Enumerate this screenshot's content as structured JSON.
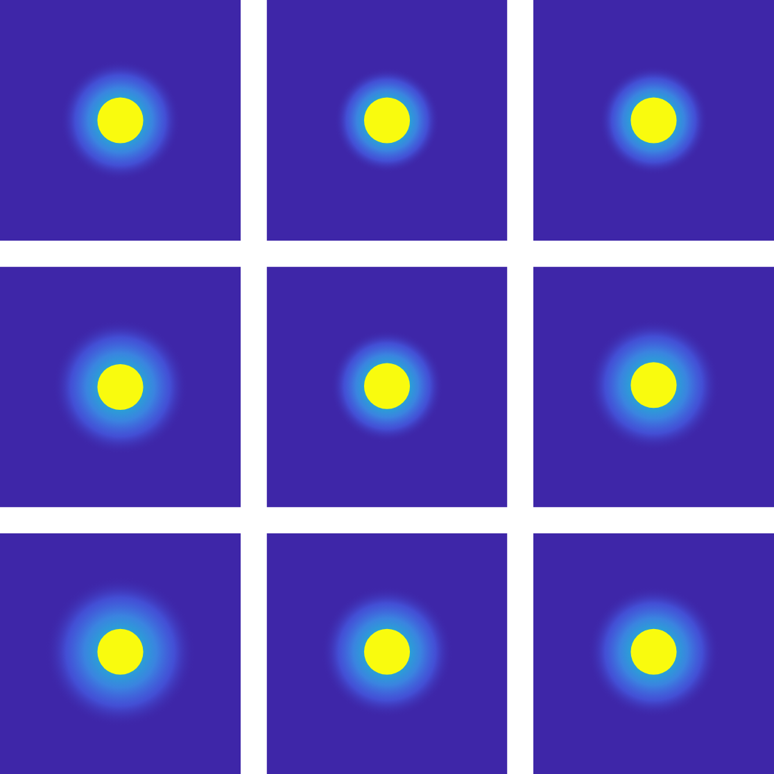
{
  "chart_data": [
    {
      "type": "heatmap",
      "xlim": [
        0,
        128
      ],
      "ylim": [
        0,
        128
      ],
      "tick_labels": false,
      "colors": [
        "#3e26a8",
        "#2a9fd6",
        "#f9fb0e"
      ],
      "disk": {
        "x": 64,
        "y": 64,
        "radius": 12.2
      },
      "halo_radius": 32
    },
    {
      "type": "heatmap",
      "xlim": [
        0,
        128
      ],
      "ylim": [
        0,
        128
      ],
      "tick_labels": false,
      "colors": [
        "#3e26a8",
        "#2a9fd6",
        "#f9fb0e"
      ],
      "disk": {
        "x": 64,
        "y": 64,
        "radius": 12.2
      },
      "halo_radius": 28
    },
    {
      "type": "heatmap",
      "xlim": [
        0,
        128
      ],
      "ylim": [
        0,
        128
      ],
      "tick_labels": false,
      "colors": [
        "#3e26a8",
        "#2a9fd6",
        "#f9fb0e"
      ],
      "disk": {
        "x": 64,
        "y": 64,
        "radius": 12.2
      },
      "halo_radius": 29
    },
    {
      "type": "heatmap",
      "xlim": [
        0,
        128
      ],
      "ylim": [
        0,
        128
      ],
      "tick_labels": false,
      "colors": [
        "#3e26a8",
        "#2a9fd6",
        "#f9fb0e"
      ],
      "disk": {
        "x": 64,
        "y": 64,
        "radius": 12.2
      },
      "halo_radius": 36
    },
    {
      "type": "heatmap",
      "xlim": [
        0,
        128
      ],
      "ylim": [
        0,
        128
      ],
      "tick_labels": false,
      "colors": [
        "#3e26a8",
        "#2a9fd6",
        "#f9fb0e"
      ],
      "disk": {
        "x": 64,
        "y": 63.5,
        "radius": 12.2
      },
      "halo_radius": 30
    },
    {
      "type": "heatmap",
      "xlim": [
        0,
        128
      ],
      "ylim": [
        0,
        128
      ],
      "tick_labels": false,
      "colors": [
        "#3e26a8",
        "#2a9fd6",
        "#f9fb0e"
      ],
      "disk": {
        "x": 64,
        "y": 63,
        "radius": 12.2
      },
      "halo_radius": 35
    },
    {
      "type": "heatmap",
      "xlim": [
        0,
        128
      ],
      "ylim": [
        0,
        128
      ],
      "tick_labels": false,
      "colors": [
        "#3e26a8",
        "#2a9fd6",
        "#f9fb0e"
      ],
      "disk": {
        "x": 64,
        "y": 63,
        "radius": 12.2
      },
      "halo_radius": 40
    },
    {
      "type": "heatmap",
      "xlim": [
        0,
        128
      ],
      "ylim": [
        0,
        128
      ],
      "tick_labels": false,
      "colors": [
        "#3e26a8",
        "#2a9fd6",
        "#f9fb0e"
      ],
      "disk": {
        "x": 64,
        "y": 63,
        "radius": 12.2
      },
      "halo_radius": 35
    },
    {
      "type": "heatmap",
      "xlim": [
        0,
        128
      ],
      "ylim": [
        0,
        128
      ],
      "tick_labels": false,
      "colors": [
        "#3e26a8",
        "#2a9fd6",
        "#f9fb0e"
      ],
      "disk": {
        "x": 64,
        "y": 63,
        "radius": 12.2
      },
      "halo_radius": 35
    }
  ]
}
